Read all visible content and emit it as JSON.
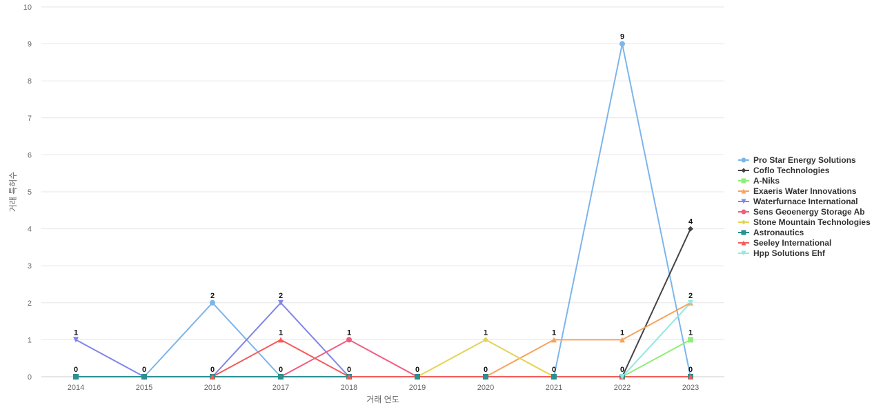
{
  "chart_data": {
    "type": "line",
    "xlabel": "거래 연도",
    "ylabel": "거래 특허수",
    "ylim": [
      0,
      10
    ],
    "yticks": [
      0,
      1,
      2,
      3,
      4,
      5,
      6,
      7,
      8,
      9,
      10
    ],
    "grid": true,
    "legend_position": "right",
    "categories": [
      "2014",
      "2015",
      "2016",
      "2017",
      "2018",
      "2019",
      "2020",
      "2021",
      "2022",
      "2023"
    ],
    "series": [
      {
        "name": "Pro Star Energy Solutions",
        "color": "#7cb5ec",
        "marker": "circle",
        "points": [
          [
            2015,
            0
          ],
          [
            2016,
            2
          ],
          [
            2017,
            0
          ],
          [
            2021,
            0
          ],
          [
            2022,
            9
          ],
          [
            2023,
            0
          ]
        ]
      },
      {
        "name": "Coflo Technologies",
        "color": "#434348",
        "marker": "diamond",
        "points": [
          [
            2022,
            0
          ],
          [
            2023,
            4
          ]
        ]
      },
      {
        "name": "A-Niks",
        "color": "#90ed7d",
        "marker": "square",
        "points": [
          [
            2022,
            0
          ],
          [
            2023,
            1
          ]
        ]
      },
      {
        "name": "Exaeris Water Innovations",
        "color": "#f7a35c",
        "marker": "triangle",
        "points": [
          [
            2020,
            0
          ],
          [
            2021,
            1
          ],
          [
            2022,
            1
          ],
          [
            2023,
            2
          ]
        ]
      },
      {
        "name": "Waterfurnace International",
        "color": "#8085e9",
        "marker": "triangle-down",
        "points": [
          [
            2014,
            1
          ],
          [
            2015,
            0
          ],
          [
            2016,
            0
          ],
          [
            2017,
            2
          ],
          [
            2018,
            0
          ]
        ]
      },
      {
        "name": "Sens Geoenergy Storage Ab",
        "color": "#f15c80",
        "marker": "circle",
        "points": [
          [
            2017,
            0
          ],
          [
            2018,
            1
          ],
          [
            2019,
            0
          ]
        ]
      },
      {
        "name": "Stone Mountain Technologies",
        "color": "#e4d354",
        "marker": "diamond",
        "points": [
          [
            2019,
            0
          ],
          [
            2020,
            1
          ],
          [
            2021,
            0
          ]
        ]
      },
      {
        "name": "Astronautics",
        "color": "#2b908f",
        "marker": "square",
        "points": [
          [
            2014,
            0
          ],
          [
            2015,
            0
          ],
          [
            2016,
            0
          ],
          [
            2017,
            0
          ],
          [
            2018,
            0
          ],
          [
            2019,
            0
          ],
          [
            2020,
            0
          ],
          [
            2021,
            0
          ],
          [
            2022,
            0
          ],
          [
            2023,
            0
          ]
        ]
      },
      {
        "name": "Seeley International",
        "color": "#f45b5b",
        "marker": "triangle",
        "points": [
          [
            2016,
            0
          ],
          [
            2017,
            1
          ],
          [
            2018,
            0
          ],
          [
            2022,
            0
          ],
          [
            2023,
            0
          ]
        ]
      },
      {
        "name": "Hpp Solutions Ehf",
        "color": "#91e8e1",
        "marker": "triangle-down",
        "points": [
          [
            2022,
            0
          ],
          [
            2023,
            2
          ]
        ]
      }
    ],
    "data_labels": [
      {
        "x": 2014,
        "y": 1,
        "text": "1"
      },
      {
        "x": 2014,
        "y": 0,
        "text": "0"
      },
      {
        "x": 2015,
        "y": 0,
        "text": "0"
      },
      {
        "x": 2016,
        "y": 2,
        "text": "2"
      },
      {
        "x": 2016,
        "y": 0,
        "text": "0"
      },
      {
        "x": 2017,
        "y": 2,
        "text": "2"
      },
      {
        "x": 2017,
        "y": 1,
        "text": "1"
      },
      {
        "x": 2017,
        "y": 0,
        "text": "0"
      },
      {
        "x": 2018,
        "y": 1,
        "text": "1"
      },
      {
        "x": 2018,
        "y": 0,
        "text": "0"
      },
      {
        "x": 2019,
        "y": 0,
        "text": "0"
      },
      {
        "x": 2020,
        "y": 1,
        "text": "1"
      },
      {
        "x": 2020,
        "y": 0,
        "text": "0"
      },
      {
        "x": 2021,
        "y": 1,
        "text": "1"
      },
      {
        "x": 2021,
        "y": 0,
        "text": "0"
      },
      {
        "x": 2022,
        "y": 9,
        "text": "9"
      },
      {
        "x": 2022,
        "y": 1,
        "text": "1"
      },
      {
        "x": 2022,
        "y": 0,
        "text": "0"
      },
      {
        "x": 2023,
        "y": 4,
        "text": "4"
      },
      {
        "x": 2023,
        "y": 2,
        "text": "2"
      },
      {
        "x": 2023,
        "y": 1,
        "text": "1"
      },
      {
        "x": 2023,
        "y": 0,
        "text": "0"
      }
    ]
  }
}
